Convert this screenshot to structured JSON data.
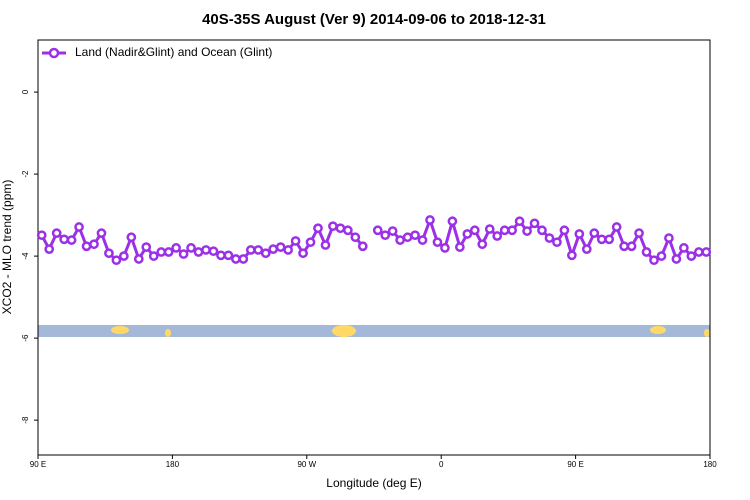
{
  "chart_data": {
    "type": "line",
    "title": "40S-35S August (Ver 9)   2014-09-06 to 2018-12-31",
    "x_label": "Longitude (deg E)",
    "y_label": "XCO2 - MLO trend (ppm)",
    "x": [
      92.5,
      97.5,
      102.5,
      107.5,
      112.5,
      117.5,
      122.5,
      127.5,
      132.5,
      137.5,
      142.5,
      147.5,
      152.5,
      157.5,
      162.5,
      167.5,
      172.5,
      177.5,
      182.5,
      187.5,
      192.5,
      197.5,
      202.5,
      207.5,
      212.5,
      217.5,
      222.5,
      227.5,
      232.5,
      237.5,
      242.5,
      247.5,
      252.5,
      257.5,
      262.5,
      267.5,
      272.5,
      277.5,
      282.5,
      287.5,
      292.5,
      297.5,
      302.5,
      307.5,
      312.5,
      317.5,
      322.5,
      327.5,
      332.5,
      337.5,
      342.5,
      347.5,
      352.5,
      357.5,
      362.5,
      367.5,
      372.5,
      377.5,
      382.5,
      387.5,
      392.5,
      397.5,
      402.5,
      407.5,
      412.5,
      417.5,
      422.5,
      427.5,
      432.5,
      437.5,
      442.5,
      447.5,
      452.5,
      457.5,
      462.5,
      467.5,
      472.5,
      477.5,
      482.5,
      487.5,
      492.5,
      497.5,
      502.5,
      507.5,
      512.5,
      517.5,
      522.5,
      527.5,
      532.5,
      537.5
    ],
    "series": [
      {
        "name": "Land (Nadir&Glint) and Ocean (Glint)",
        "color": "#9b30e6",
        "values": [
          -3.49,
          -3.83,
          -3.44,
          -3.59,
          -3.61,
          -3.29,
          -3.76,
          -3.71,
          -3.44,
          -3.93,
          -4.1,
          -4.0,
          -3.54,
          -4.07,
          -3.78,
          -4.0,
          -3.9,
          -3.9,
          -3.8,
          -3.95,
          -3.8,
          -3.9,
          -3.85,
          -3.88,
          -3.98,
          -3.98,
          -4.07,
          -4.07,
          -3.85,
          -3.85,
          -3.93,
          -3.83,
          -3.78,
          -3.85,
          -3.63,
          -3.93,
          -3.66,
          -3.32,
          -3.73,
          -3.27,
          -3.32,
          -3.37,
          -3.54,
          -3.76,
          null,
          -3.37,
          -3.49,
          -3.39,
          -3.61,
          -3.54,
          -3.49,
          -3.61,
          -3.12,
          -3.66,
          -3.8,
          -3.15,
          -3.78,
          -3.46,
          -3.37,
          -3.71,
          -3.34,
          -3.51,
          -3.37,
          -3.37,
          -3.15,
          -3.39,
          -3.2,
          -3.37,
          -3.56,
          -3.66,
          -3.37,
          -3.98,
          -3.46,
          -3.83,
          -3.44,
          -3.59,
          -3.59,
          -3.29,
          -3.76,
          -3.76,
          -3.44,
          -3.9,
          -4.1,
          -4.0,
          -3.56,
          -4.07,
          -3.8,
          -4.0,
          -3.9,
          -3.9
        ]
      }
    ],
    "xlim": [
      90,
      540
    ],
    "xticks": [
      {
        "value": 90,
        "label": "90 E"
      },
      180,
      {
        "value": 270,
        "label": "90 W"
      },
      {
        "value": 360,
        "label": "0"
      },
      {
        "value": 450,
        "label": "90 E"
      },
      {
        "value": 540,
        "label": "180"
      }
    ],
    "ylim": [
      1.27,
      -8.85
    ],
    "yticks": [
      0,
      -2,
      -4,
      -6,
      -8
    ],
    "legend": "top-left"
  }
}
